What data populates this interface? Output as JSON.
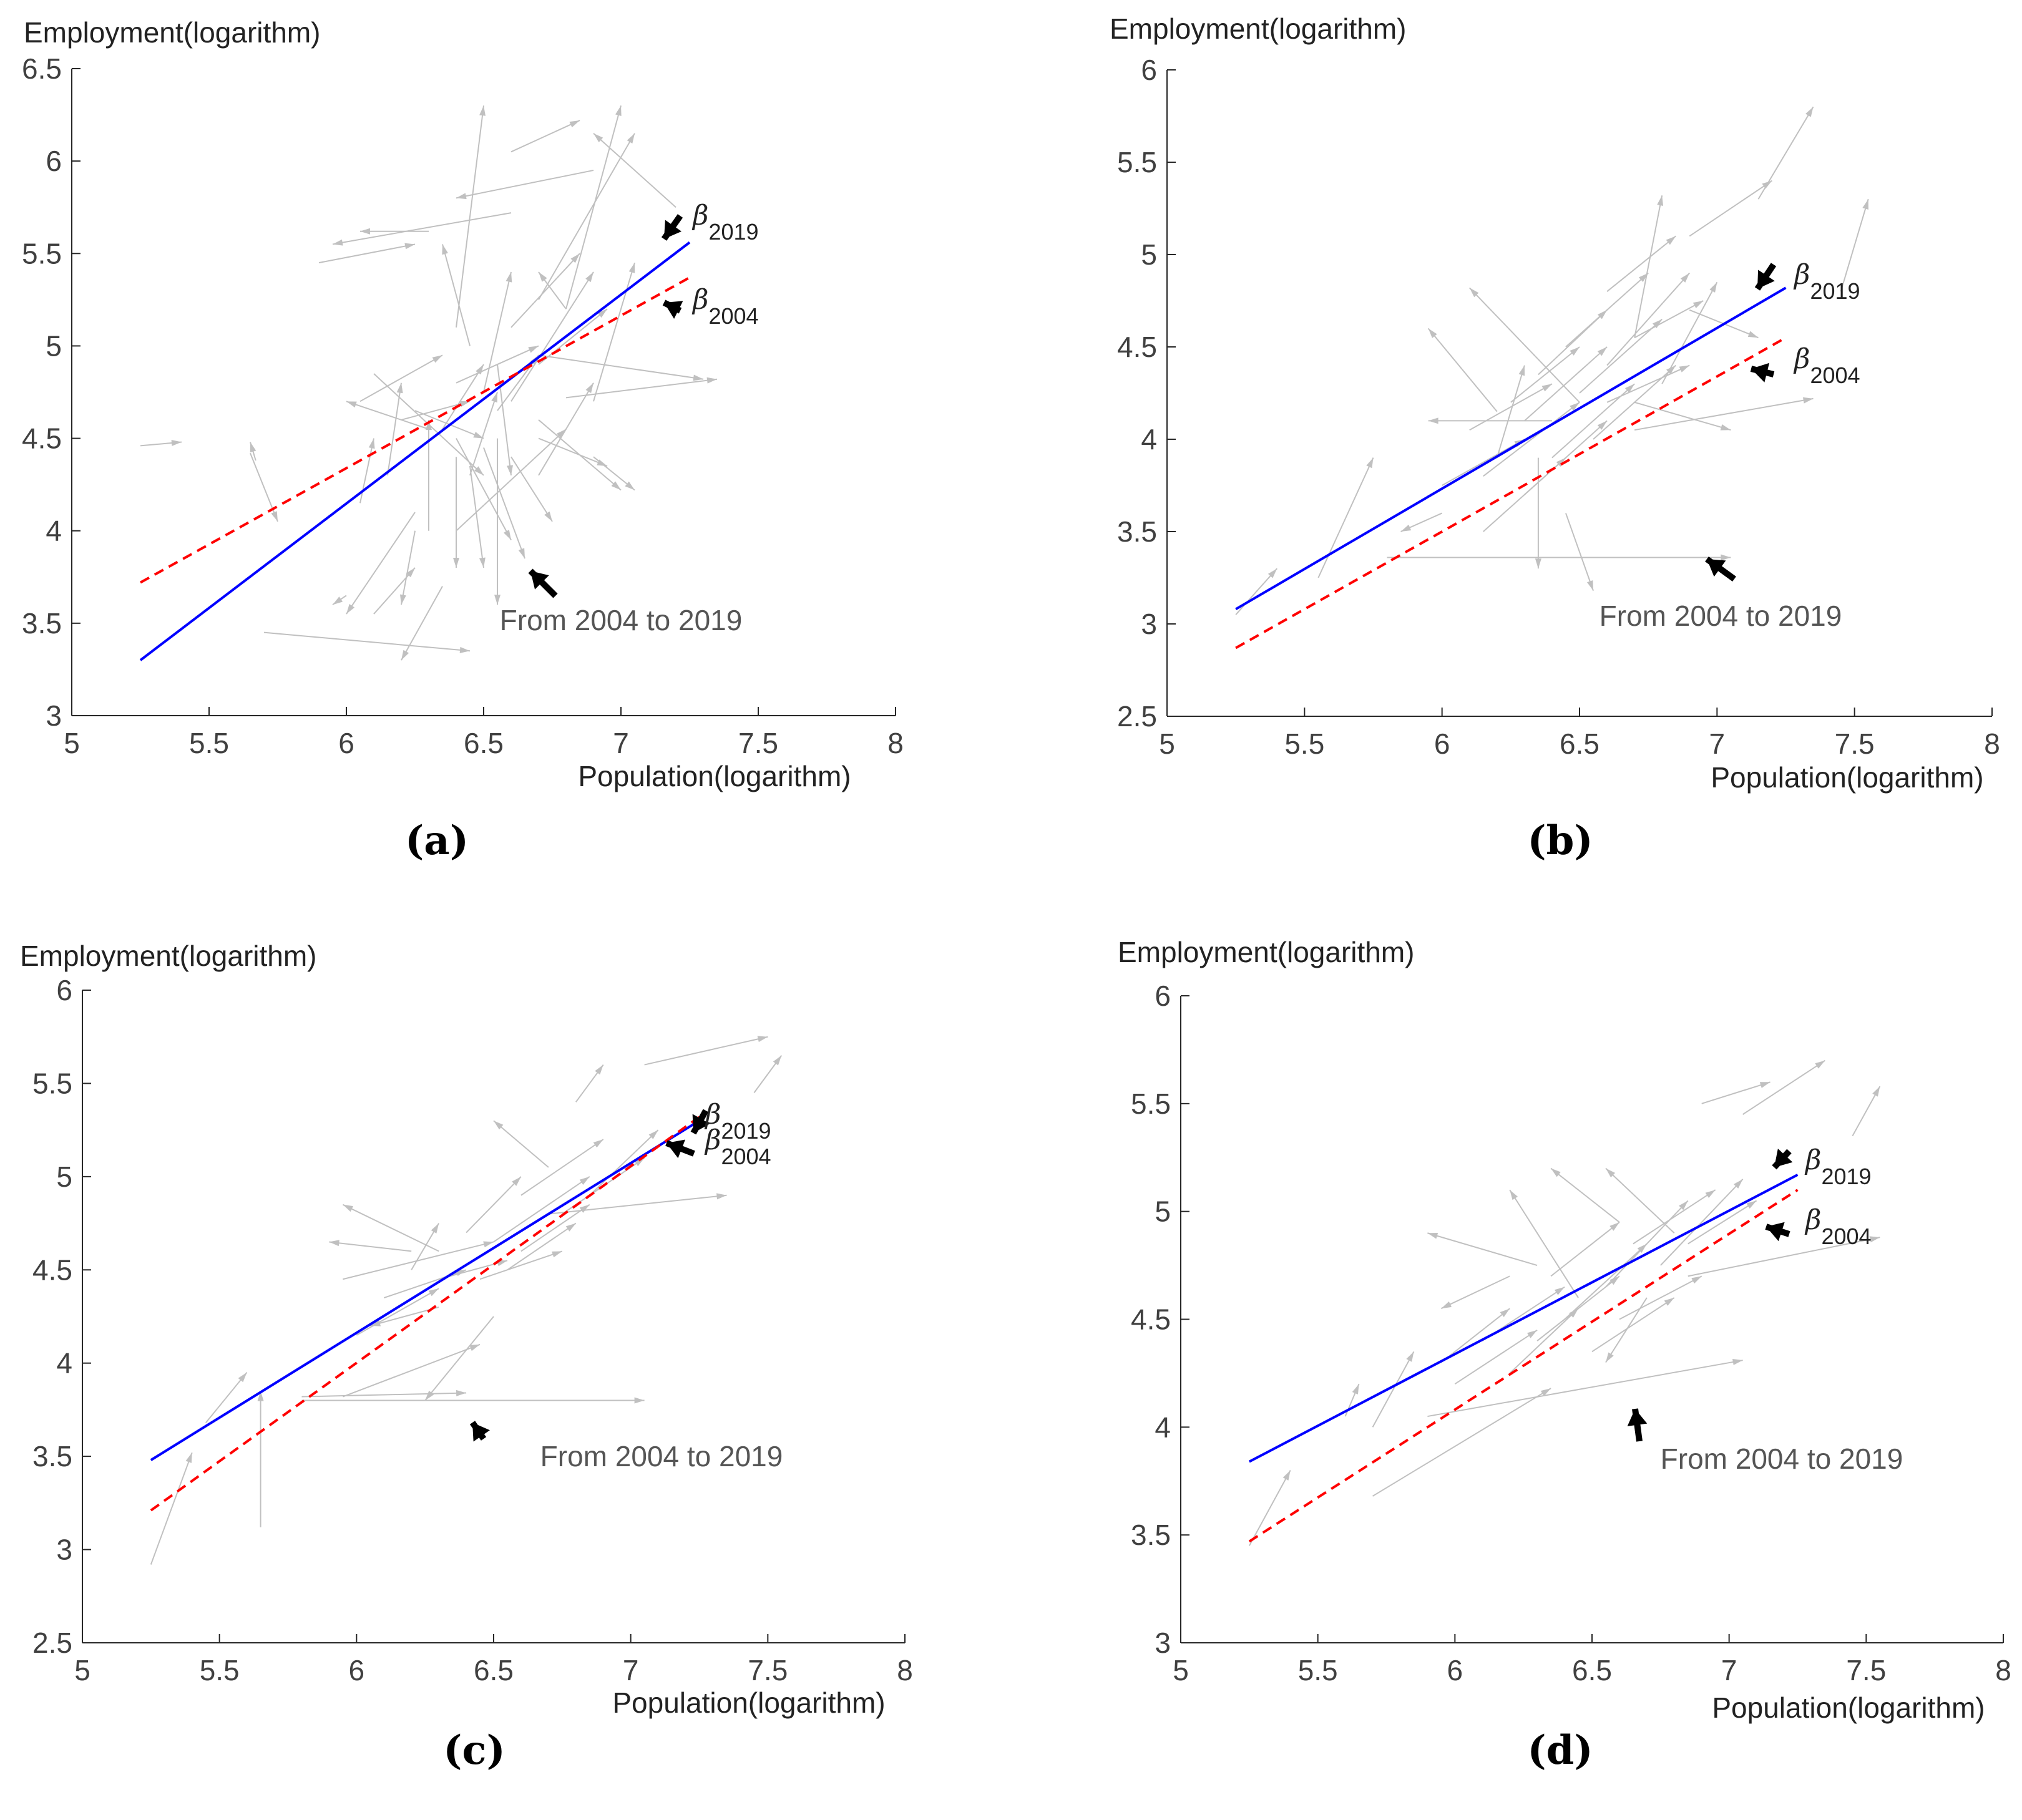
{
  "colors": {
    "arrows": "#c0c0c0",
    "beta2019": "#0000ff",
    "beta2004": "#ff0000",
    "pointer": "#000000",
    "axis": "#262626",
    "text": "#404040"
  },
  "chart_data": [
    {
      "panel": "a",
      "caption": "(a)",
      "type": "line",
      "title": "",
      "xlabel": "Population(logarithm)",
      "ylabel": "Employment(logarithm)",
      "xlim": [
        5,
        8
      ],
      "ylim": [
        3,
        6.5
      ],
      "xticks": [
        "5",
        "5.5",
        "6",
        "6.5",
        "7",
        "7.5",
        "8"
      ],
      "yticks": [
        "3",
        "3.5",
        "4",
        "4.5",
        "5",
        "5.5",
        "6",
        "6.5"
      ],
      "series": [
        {
          "name": "β2019",
          "style": "solid",
          "x": [
            5.25,
            7.25
          ],
          "y": [
            3.3,
            5.56
          ]
        },
        {
          "name": "β2004",
          "style": "dashed",
          "x": [
            5.25,
            7.25
          ],
          "y": [
            3.72,
            5.37
          ]
        }
      ],
      "annotation": "From 2004 to 2019",
      "label_2019": {
        "beta": "β",
        "year": "2019"
      },
      "label_2004": {
        "beta": "β",
        "year": "2004"
      },
      "movement_arrows": [
        [
          6.3,
          5.62,
          6.05,
          5.62
        ],
        [
          6.6,
          5.72,
          5.95,
          5.55
        ],
        [
          6.9,
          5.95,
          6.4,
          5.8
        ],
        [
          7.2,
          5.75,
          6.9,
          6.15
        ],
        [
          6.7,
          5.25,
          7.05,
          6.15
        ],
        [
          6.8,
          5.2,
          7.0,
          6.3
        ],
        [
          6.4,
          5.1,
          6.5,
          6.3
        ],
        [
          5.9,
          5.45,
          6.25,
          5.55
        ],
        [
          6.6,
          6.05,
          6.85,
          6.22
        ],
        [
          5.25,
          4.46,
          5.4,
          4.48
        ],
        [
          5.67,
          4.38,
          5.65,
          4.48
        ],
        [
          5.65,
          4.42,
          5.75,
          4.05
        ],
        [
          6.25,
          4.65,
          6.5,
          4.5
        ],
        [
          6.0,
          3.65,
          5.95,
          3.6
        ],
        [
          6.1,
          3.55,
          6.25,
          3.8
        ],
        [
          5.7,
          3.45,
          6.45,
          3.35
        ],
        [
          6.35,
          3.7,
          6.2,
          3.3
        ],
        [
          6.7,
          4.6,
          7.0,
          4.22
        ],
        [
          6.8,
          4.72,
          7.35,
          4.82
        ],
        [
          6.7,
          4.95,
          7.3,
          4.82
        ],
        [
          6.45,
          4.35,
          6.5,
          3.8
        ],
        [
          6.4,
          4.5,
          6.6,
          3.95
        ],
        [
          6.55,
          4.9,
          6.6,
          4.3
        ],
        [
          6.5,
          4.45,
          6.65,
          3.85
        ],
        [
          6.2,
          4.6,
          6.45,
          4.7
        ],
        [
          6.3,
          4.55,
          6.0,
          4.7
        ],
        [
          6.1,
          4.85,
          6.5,
          4.3
        ],
        [
          6.6,
          4.4,
          6.75,
          4.05
        ],
        [
          6.4,
          4.0,
          6.8,
          4.55
        ],
        [
          6.9,
          4.4,
          7.05,
          4.22
        ],
        [
          6.25,
          4.1,
          6.0,
          3.55
        ],
        [
          6.45,
          5.0,
          6.35,
          5.55
        ],
        [
          6.8,
          5.2,
          6.7,
          5.4
        ],
        [
          6.9,
          4.7,
          7.05,
          5.45
        ],
        [
          6.5,
          4.75,
          6.6,
          5.4
        ],
        [
          6.4,
          4.8,
          6.7,
          5.0
        ],
        [
          6.6,
          4.7,
          6.9,
          5.4
        ],
        [
          6.15,
          4.3,
          6.2,
          4.8
        ],
        [
          6.3,
          4.0,
          6.3,
          4.6
        ],
        [
          6.05,
          4.7,
          6.35,
          4.95
        ],
        [
          6.7,
          4.3,
          6.9,
          4.8
        ],
        [
          6.45,
          4.3,
          6.55,
          4.75
        ],
        [
          6.6,
          5.1,
          6.85,
          5.5
        ],
        [
          6.7,
          4.9,
          6.95,
          5.2
        ],
        [
          6.05,
          4.15,
          6.1,
          4.5
        ],
        [
          6.55,
          4.65,
          6.7,
          4.95
        ],
        [
          6.4,
          4.4,
          6.4,
          3.8
        ],
        [
          6.55,
          4.5,
          6.55,
          3.6
        ],
        [
          6.7,
          4.5,
          6.95,
          4.35
        ],
        [
          6.25,
          4.0,
          6.2,
          3.6
        ],
        [
          6.35,
          4.55,
          6.5,
          4.9
        ]
      ]
    },
    {
      "panel": "b",
      "caption": "(b)",
      "type": "line",
      "title": "",
      "xlabel": "Population(logarithm)",
      "ylabel": "Employment(logarithm)",
      "xlim": [
        5,
        8
      ],
      "ylim": [
        2.5,
        6
      ],
      "xticks": [
        "5",
        "5.5",
        "6",
        "6.5",
        "7",
        "7.5",
        "8"
      ],
      "yticks": [
        "2.5",
        "3",
        "3.5",
        "4",
        "4.5",
        "5",
        "5.5",
        "6"
      ],
      "series": [
        {
          "name": "β2019",
          "style": "solid",
          "x": [
            5.25,
            7.25
          ],
          "y": [
            3.08,
            4.82
          ]
        },
        {
          "name": "β2004",
          "style": "dashed",
          "x": [
            5.25,
            7.25
          ],
          "y": [
            2.87,
            4.55
          ]
        }
      ],
      "annotation": "From 2004 to 2019",
      "label_2019": {
        "beta": "β",
        "year": "2019"
      },
      "label_2004": {
        "beta": "β",
        "year": "2004"
      },
      "movement_arrows": [
        [
          5.8,
          3.36,
          7.05,
          3.36
        ],
        [
          6.7,
          4.05,
          7.35,
          4.22
        ],
        [
          7.45,
          4.8,
          7.55,
          5.3
        ],
        [
          7.15,
          5.3,
          7.35,
          5.8
        ],
        [
          6.9,
          5.1,
          7.2,
          5.4
        ],
        [
          6.7,
          4.55,
          6.8,
          5.32
        ],
        [
          6.6,
          4.8,
          6.85,
          5.1
        ],
        [
          6.2,
          4.15,
          5.95,
          4.6
        ],
        [
          6.4,
          4.1,
          5.95,
          4.1
        ],
        [
          6.5,
          4.2,
          6.1,
          4.82
        ],
        [
          6.35,
          3.9,
          6.35,
          3.3
        ],
        [
          6.45,
          3.6,
          6.55,
          3.18
        ],
        [
          5.55,
          3.25,
          5.75,
          3.9
        ],
        [
          5.25,
          3.05,
          5.4,
          3.3
        ],
        [
          6.9,
          4.7,
          7.15,
          4.55
        ],
        [
          6.7,
          4.2,
          7.05,
          4.05
        ],
        [
          6.0,
          3.6,
          5.85,
          3.5
        ],
        [
          6.15,
          3.8,
          6.5,
          4.2
        ],
        [
          6.3,
          4.1,
          6.6,
          4.5
        ],
        [
          6.5,
          4.25,
          6.8,
          4.65
        ],
        [
          6.6,
          4.4,
          6.9,
          4.9
        ],
        [
          6.4,
          3.9,
          6.7,
          4.3
        ],
        [
          6.25,
          4.2,
          6.5,
          4.5
        ],
        [
          6.55,
          4.0,
          6.85,
          4.4
        ],
        [
          6.8,
          4.3,
          7.0,
          4.85
        ],
        [
          6.35,
          4.35,
          6.6,
          4.7
        ],
        [
          6.2,
          3.9,
          6.3,
          4.4
        ],
        [
          6.1,
          4.05,
          6.4,
          4.3
        ],
        [
          6.45,
          4.5,
          6.75,
          4.9
        ],
        [
          6.6,
          4.2,
          6.9,
          4.4
        ],
        [
          6.3,
          3.7,
          6.6,
          4.1
        ],
        [
          6.7,
          4.55,
          6.95,
          4.75
        ],
        [
          6.0,
          3.75,
          6.3,
          4.0
        ],
        [
          6.15,
          3.5,
          6.45,
          3.9
        ]
      ]
    },
    {
      "panel": "c",
      "caption": "(c)",
      "type": "line",
      "title": "",
      "xlabel": "Population(logarithm)",
      "ylabel": "Employment(logarithm)",
      "xlim": [
        5,
        8
      ],
      "ylim": [
        2.5,
        6
      ],
      "xticks": [
        "5",
        "5.5",
        "6",
        "6.5",
        "7",
        "7.5",
        "8"
      ],
      "yticks": [
        "2.5",
        "3",
        "3.5",
        "4",
        "4.5",
        "5",
        "5.5",
        "6"
      ],
      "series": [
        {
          "name": "β2019",
          "style": "solid",
          "x": [
            5.25,
            7.25
          ],
          "y": [
            3.48,
            5.3
          ]
        },
        {
          "name": "β2004",
          "style": "dashed",
          "x": [
            5.25,
            7.25
          ],
          "y": [
            3.21,
            5.32
          ]
        }
      ],
      "annotation": "From 2004 to 2019",
      "label_2019": {
        "beta": "β",
        "year": "2019"
      },
      "label_2004": {
        "beta": "β",
        "year": "2004"
      },
      "movement_arrows": [
        [
          5.8,
          3.8,
          7.05,
          3.8
        ],
        [
          5.8,
          3.82,
          6.4,
          3.84
        ],
        [
          5.95,
          3.82,
          6.45,
          4.1
        ],
        [
          5.65,
          3.12,
          5.65,
          3.85
        ],
        [
          5.25,
          2.92,
          5.4,
          3.52
        ],
        [
          5.45,
          3.68,
          5.6,
          3.95
        ],
        [
          5.95,
          4.45,
          6.5,
          4.65
        ],
        [
          6.3,
          4.6,
          5.95,
          4.85
        ],
        [
          6.2,
          4.6,
          5.9,
          4.65
        ],
        [
          6.7,
          4.8,
          7.35,
          4.9
        ],
        [
          7.05,
          5.6,
          7.5,
          5.75
        ],
        [
          7.45,
          5.45,
          7.55,
          5.65
        ],
        [
          6.8,
          5.4,
          6.9,
          5.6
        ],
        [
          6.7,
          5.05,
          6.5,
          5.3
        ],
        [
          6.3,
          4.3,
          6.05,
          4.2
        ],
        [
          6.5,
          4.25,
          6.25,
          3.8
        ],
        [
          6.2,
          4.5,
          6.3,
          4.75
        ],
        [
          6.4,
          4.7,
          6.6,
          5.0
        ],
        [
          6.5,
          4.65,
          6.85,
          5.0
        ],
        [
          6.6,
          4.9,
          6.9,
          5.2
        ],
        [
          6.55,
          4.5,
          6.8,
          4.75
        ],
        [
          6.45,
          4.45,
          6.75,
          4.6
        ],
        [
          6.75,
          4.8,
          7.05,
          5.1
        ],
        [
          6.85,
          4.9,
          7.1,
          5.25
        ],
        [
          6.3,
          4.45,
          6.55,
          4.55
        ],
        [
          6.0,
          4.15,
          6.3,
          4.4
        ],
        [
          6.1,
          4.35,
          6.4,
          4.5
        ],
        [
          6.6,
          4.6,
          6.85,
          4.85
        ]
      ]
    },
    {
      "panel": "d",
      "caption": "(d)",
      "type": "line",
      "title": "",
      "xlabel": "Population(logarithm)",
      "ylabel": "Employment(logarithm)",
      "xlim": [
        5,
        8
      ],
      "ylim": [
        3,
        6
      ],
      "xticks": [
        "5",
        "5.5",
        "6",
        "6.5",
        "7",
        "7.5",
        "8"
      ],
      "yticks": [
        "3",
        "3.5",
        "4",
        "4.5",
        "5",
        "5.5",
        "6"
      ],
      "series": [
        {
          "name": "β2019",
          "style": "solid",
          "x": [
            5.25,
            7.25
          ],
          "y": [
            3.84,
            5.17
          ]
        },
        {
          "name": "β2004",
          "style": "dashed",
          "x": [
            5.25,
            7.25
          ],
          "y": [
            3.47,
            5.1
          ]
        }
      ],
      "annotation": "From 2004 to 2019",
      "label_2019": {
        "beta": "β",
        "year": "2019"
      },
      "label_2004": {
        "beta": "β",
        "year": "2004"
      },
      "movement_arrows": [
        [
          5.7,
          3.68,
          6.35,
          4.18
        ],
        [
          5.9,
          4.05,
          7.05,
          4.31
        ],
        [
          6.85,
          4.7,
          7.55,
          4.88
        ],
        [
          7.45,
          5.35,
          7.55,
          5.58
        ],
        [
          7.05,
          5.45,
          7.35,
          5.7
        ],
        [
          6.9,
          5.5,
          7.15,
          5.6
        ],
        [
          5.25,
          3.45,
          5.4,
          3.8
        ],
        [
          5.7,
          4.0,
          5.85,
          4.35
        ],
        [
          5.6,
          4.05,
          5.65,
          4.2
        ],
        [
          6.2,
          4.7,
          5.95,
          4.55
        ],
        [
          6.3,
          4.75,
          5.9,
          4.9
        ],
        [
          6.45,
          4.6,
          6.2,
          5.1
        ],
        [
          6.6,
          4.95,
          6.35,
          5.2
        ],
        [
          6.8,
          4.9,
          6.55,
          5.2
        ],
        [
          6.7,
          4.6,
          6.55,
          4.3
        ],
        [
          6.3,
          4.4,
          6.6,
          4.7
        ],
        [
          6.4,
          4.5,
          6.7,
          4.85
        ],
        [
          6.55,
          4.65,
          6.85,
          5.05
        ],
        [
          6.6,
          4.5,
          6.9,
          4.7
        ],
        [
          6.2,
          4.25,
          6.45,
          4.55
        ],
        [
          6.0,
          4.2,
          6.3,
          4.45
        ],
        [
          6.75,
          4.75,
          7.05,
          5.15
        ],
        [
          6.5,
          4.35,
          6.8,
          4.6
        ],
        [
          6.1,
          4.4,
          6.4,
          4.65
        ],
        [
          6.85,
          4.85,
          7.1,
          5.05
        ],
        [
          6.35,
          4.7,
          6.6,
          4.95
        ],
        [
          5.95,
          4.3,
          6.2,
          4.55
        ],
        [
          6.65,
          4.85,
          6.95,
          5.1
        ]
      ]
    }
  ]
}
